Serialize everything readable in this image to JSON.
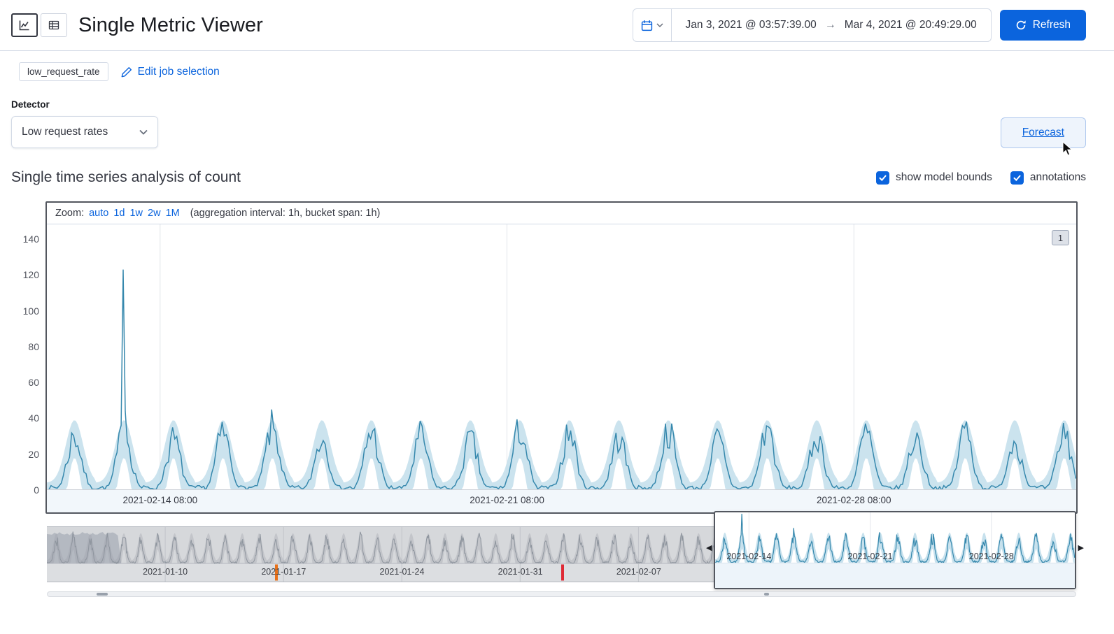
{
  "colors": {
    "primary": "#0b64dd",
    "series_line": "#3688ad",
    "series_band": "#b9d9e8",
    "context_line": "#8e959e",
    "anomaly_orange": "#e8711a",
    "anomaly_red": "#df2a35"
  },
  "header": {
    "title": "Single Metric Viewer",
    "time_range": {
      "start": "Jan 3, 2021 @ 03:57:39.00",
      "arrow": "→",
      "end": "Mar 4, 2021 @ 20:49:29.00"
    },
    "refresh_label": "Refresh"
  },
  "job_bar": {
    "job_badge": "low_request_rate",
    "edit_link": "Edit job selection"
  },
  "detector": {
    "label": "Detector",
    "selected": "Low request rates"
  },
  "forecast_button": "Forecast",
  "series_section": {
    "title": "Single time series analysis of count",
    "checkboxes": [
      {
        "label": "show model bounds",
        "checked": true
      },
      {
        "label": "annotations",
        "checked": true
      }
    ]
  },
  "chart": {
    "zoom_label": "Zoom:",
    "zoom_links": [
      "auto",
      "1d",
      "1w",
      "2w",
      "1M"
    ],
    "agg_note": "(aggregation interval: 1h, bucket span: 1h)",
    "annotation_badge": "1",
    "y_ticks": [
      140,
      120,
      100,
      80,
      60,
      40,
      20,
      0
    ],
    "x_ticks": [
      {
        "label": "2021-02-14 08:00",
        "pct": 11.0
      },
      {
        "label": "2021-02-21 08:00",
        "pct": 44.7
      },
      {
        "label": "2021-02-28 08:00",
        "pct": 78.4
      }
    ]
  },
  "chart_data": {
    "type": "line",
    "metric": "count",
    "aggregation_interval": "1h",
    "bucket_span": "1h",
    "domain": {
      "start": "2021-02-12 01:00",
      "end": "2021-03-04 20:00",
      "days": 20.8
    },
    "y_range": [
      0,
      148
    ],
    "daily_peaks": [
      31,
      34,
      29,
      33,
      36,
      30,
      34,
      31,
      29,
      35,
      33,
      30,
      34,
      29,
      36,
      31,
      33,
      30,
      35,
      29,
      33
    ],
    "anomaly_spike": {
      "day_index": 1,
      "hour": 13,
      "value": 123
    },
    "model_bounds": {
      "peak_upper": 39,
      "peak_lower": 18,
      "night_upper": 4,
      "night_lower": 0
    }
  },
  "context": {
    "domain": {
      "start": "2021-01-03",
      "end": "2021-03-04",
      "days": 60.9
    },
    "selection_start_pct": 64.8,
    "x_ticks": [
      {
        "label": "2021-01-10",
        "pct": 11.5
      },
      {
        "label": "2021-01-17",
        "pct": 23.0
      },
      {
        "label": "2021-01-24",
        "pct": 34.5
      },
      {
        "label": "2021-01-31",
        "pct": 46.0
      },
      {
        "label": "2021-02-07",
        "pct": 57.5
      }
    ],
    "selection_ticks": [
      {
        "label": "2021-02-14",
        "pct": 9.4
      },
      {
        "label": "2021-02-21",
        "pct": 43.1
      },
      {
        "label": "2021-02-28",
        "pct": 76.8
      }
    ],
    "anomaly_marks": [
      {
        "severity": "major",
        "color": "#e8711a",
        "pct": 22.3
      },
      {
        "severity": "critical",
        "color": "#df2a35",
        "pct": 50.1
      }
    ]
  }
}
